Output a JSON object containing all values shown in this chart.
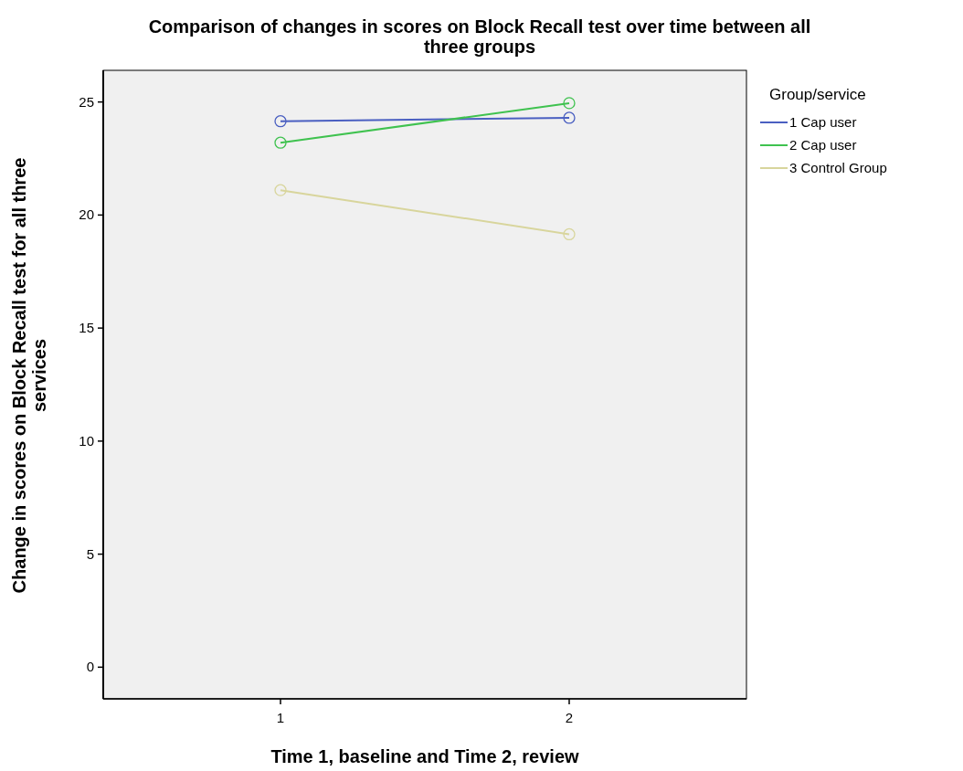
{
  "chart_data": {
    "type": "line",
    "title": "Comparison of changes in scores on Block Recall test over time between all three groups",
    "xlabel": "Time 1, baseline and Time 2, review",
    "ylabel": "Change in scores on Block Recall test for all three services",
    "legend_title": "Group/service",
    "categories": [
      "1",
      "2"
    ],
    "ylim": [
      -1.4,
      26.4
    ],
    "yticks": [
      0,
      5,
      10,
      15,
      20,
      25
    ],
    "grid": false,
    "legend": "right",
    "marker": "circle",
    "line_style": "solid",
    "series": [
      {
        "name": "1 Cap user",
        "color": "#4a5fc1",
        "values": [
          24.15,
          24.3
        ]
      },
      {
        "name": "2 Cap user",
        "color": "#3fc24f",
        "values": [
          23.2,
          24.95
        ]
      },
      {
        "name": "3 Control Group",
        "color": "#d8d59c",
        "values": [
          21.1,
          19.15
        ]
      }
    ]
  }
}
